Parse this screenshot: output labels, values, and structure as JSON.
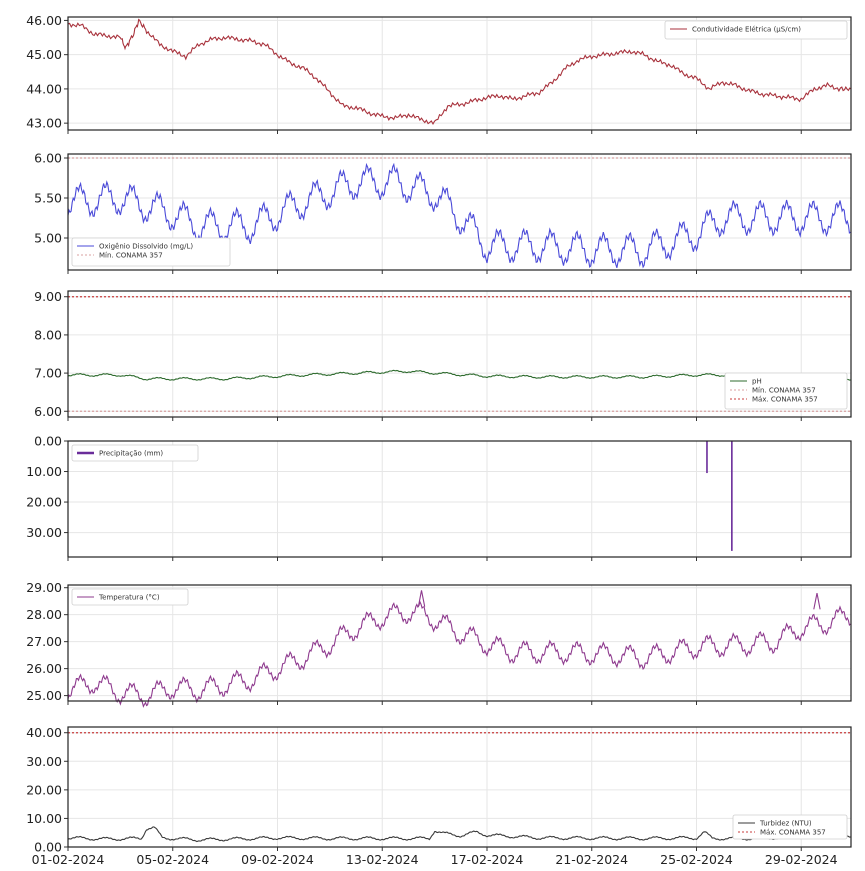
{
  "chart_data": [
    {
      "type": "line",
      "ylim": [
        42.8,
        46.1
      ],
      "yticks": [
        "43.00",
        "44.00",
        "45.00",
        "46.00"
      ],
      "series": [
        {
          "name": "Condutividade Elétrica (µS/cm)",
          "color": "#a8323c",
          "style": "solid",
          "points": [
            [
              0,
              45.9
            ],
            [
              0.5,
              45.85
            ],
            [
              1,
              45.6
            ],
            [
              1.5,
              45.55
            ],
            [
              2,
              45.5
            ],
            [
              2.2,
              45.2
            ],
            [
              2.5,
              45.6
            ],
            [
              2.7,
              46.0
            ],
            [
              3,
              45.7
            ],
            [
              3.5,
              45.3
            ],
            [
              4,
              45.1
            ],
            [
              4.5,
              44.95
            ],
            [
              5,
              45.3
            ],
            [
              5.5,
              45.45
            ],
            [
              6,
              45.5
            ],
            [
              6.5,
              45.45
            ],
            [
              7,
              45.4
            ],
            [
              7.5,
              45.3
            ],
            [
              8,
              45.0
            ],
            [
              8.5,
              44.75
            ],
            [
              9,
              44.6
            ],
            [
              9.5,
              44.3
            ],
            [
              10,
              43.9
            ],
            [
              10.5,
              43.5
            ],
            [
              11,
              43.45
            ],
            [
              11.5,
              43.3
            ],
            [
              12,
              43.2
            ],
            [
              12.5,
              43.15
            ],
            [
              13,
              43.25
            ],
            [
              13.5,
              43.1
            ],
            [
              14,
              43.0
            ],
            [
              14.5,
              43.5
            ],
            [
              15,
              43.55
            ],
            [
              15.5,
              43.65
            ],
            [
              16,
              43.75
            ],
            [
              16.5,
              43.8
            ],
            [
              17,
              43.7
            ],
            [
              17.5,
              43.8
            ],
            [
              18,
              43.9
            ],
            [
              18.5,
              44.2
            ],
            [
              19,
              44.6
            ],
            [
              19.5,
              44.85
            ],
            [
              20,
              44.95
            ],
            [
              20.5,
              45.0
            ],
            [
              21,
              45.05
            ],
            [
              21.5,
              45.1
            ],
            [
              22,
              45.0
            ],
            [
              22.5,
              44.8
            ],
            [
              23,
              44.7
            ],
            [
              23.5,
              44.45
            ],
            [
              24,
              44.3
            ],
            [
              24.5,
              44.0
            ],
            [
              25,
              44.2
            ],
            [
              25.5,
              44.1
            ],
            [
              26,
              43.95
            ],
            [
              26.5,
              43.85
            ],
            [
              27,
              43.8
            ],
            [
              27.5,
              43.75
            ],
            [
              28,
              43.7
            ],
            [
              28.5,
              44.0
            ],
            [
              29,
              44.1
            ],
            [
              29.5,
              44.0
            ],
            [
              29.9,
              44.0
            ]
          ]
        }
      ],
      "legend": {
        "position": "top-right",
        "entries": [
          "Condutividade Elétrica (µS/cm)"
        ]
      }
    },
    {
      "type": "line",
      "ylim": [
        4.6,
        6.05
      ],
      "yticks": [
        "5.00",
        "5.50",
        "6.00"
      ],
      "series": [
        {
          "name": "Oxigênio Dissolvido (mg/L)",
          "color": "#4a4ad8",
          "style": "solid",
          "mean": [
            [
              0,
              5.45
            ],
            [
              2,
              5.5
            ],
            [
              4,
              5.3
            ],
            [
              5,
              5.15
            ],
            [
              7,
              5.15
            ],
            [
              9,
              5.45
            ],
            [
              11,
              5.7
            ],
            [
              12.5,
              5.7
            ],
            [
              14,
              5.55
            ],
            [
              15,
              5.25
            ],
            [
              16,
              4.9
            ],
            [
              18,
              4.9
            ],
            [
              20,
              4.85
            ],
            [
              21,
              4.85
            ],
            [
              22,
              4.85
            ],
            [
              24,
              5.05
            ],
            [
              25,
              5.25
            ],
            [
              27,
              5.25
            ],
            [
              29.9,
              5.25
            ]
          ],
          "amp": 0.18
        },
        {
          "name": "Mín. CONAMA 357",
          "color": "#d8a0a0",
          "style": "dotted",
          "value": 6.0
        }
      ],
      "legend": {
        "position": "bottom-left",
        "entries": [
          "Oxigênio Dissolvido (mg/L)",
          "Mín. CONAMA 357"
        ]
      }
    },
    {
      "type": "line",
      "ylim": [
        5.85,
        9.15
      ],
      "yticks": [
        "6.00",
        "7.00",
        "8.00",
        "9.00"
      ],
      "series": [
        {
          "name": "pH",
          "color": "#2e6b2e",
          "style": "solid",
          "mean": [
            [
              0,
              6.95
            ],
            [
              2,
              6.95
            ],
            [
              3,
              6.85
            ],
            [
              6,
              6.85
            ],
            [
              9,
              6.95
            ],
            [
              11,
              7.0
            ],
            [
              13,
              7.05
            ],
            [
              14,
              7.0
            ],
            [
              16,
              6.92
            ],
            [
              18,
              6.9
            ],
            [
              22,
              6.9
            ],
            [
              24,
              6.95
            ],
            [
              26,
              6.95
            ],
            [
              27,
              6.9
            ],
            [
              28.5,
              6.78
            ],
            [
              29.9,
              6.85
            ]
          ],
          "amp": 0.03
        },
        {
          "name": "Mín. CONAMA 357",
          "color": "#d8a0a0",
          "style": "dotted",
          "value": 6.0
        },
        {
          "name": "Máx. CONAMA 357",
          "color": "#c83c3c",
          "style": "dotted",
          "value": 9.0
        }
      ],
      "legend": {
        "position": "right",
        "entries": [
          "pH",
          "Mín. CONAMA 357",
          "Máx. CONAMA 357"
        ]
      }
    },
    {
      "type": "bar",
      "ylim": [
        0,
        38
      ],
      "y_inverted": true,
      "yticks": [
        "0.00",
        "10.00",
        "20.00",
        "30.00"
      ],
      "series": [
        {
          "name": "Precipitação (mm)",
          "color": "#6a2c9a",
          "events": [
            [
              24.4,
              0,
              10.5
            ],
            [
              25.35,
              0,
              36
            ]
          ]
        }
      ],
      "legend": {
        "position": "top-left",
        "entries": [
          "Precipitação (mm)"
        ]
      }
    },
    {
      "type": "line",
      "ylim": [
        24.8,
        29.1
      ],
      "yticks": [
        "25.00",
        "26.00",
        "27.00",
        "28.00",
        "29.00"
      ],
      "series": [
        {
          "name": "Temperatura (°C)",
          "color": "#8e3a8e",
          "style": "solid",
          "mean": [
            [
              0,
              25.2
            ],
            [
              1,
              25.5
            ],
            [
              2,
              25.1
            ],
            [
              3,
              25.0
            ],
            [
              4,
              25.3
            ],
            [
              5,
              25.2
            ],
            [
              7,
              25.6
            ],
            [
              9,
              26.4
            ],
            [
              10,
              26.9
            ],
            [
              11,
              27.5
            ],
            [
              12,
              27.9
            ],
            [
              13,
              28.1
            ],
            [
              13.7,
              28.0
            ],
            [
              14,
              27.8
            ],
            [
              15,
              27.3
            ],
            [
              16,
              26.9
            ],
            [
              17,
              26.6
            ],
            [
              19,
              26.6
            ],
            [
              21,
              26.5
            ],
            [
              22,
              26.4
            ],
            [
              24,
              26.8
            ],
            [
              26,
              26.9
            ],
            [
              27,
              27.0
            ],
            [
              28,
              27.5
            ],
            [
              29,
              27.7
            ],
            [
              29.9,
              28.0
            ]
          ],
          "amp": 0.35
        },
        {
          "name": "",
          "color": "#8e3a8e",
          "style": "solid",
          "peaks": [
            [
              13.5,
              28.9
            ],
            [
              28.6,
              28.8
            ]
          ]
        }
      ],
      "legend": {
        "position": "top-left",
        "entries": [
          "Temperatura (°C)"
        ]
      }
    },
    {
      "type": "line",
      "ylim": [
        0,
        42
      ],
      "yticks": [
        "0.00",
        "10.00",
        "20.00",
        "30.00",
        "40.00"
      ],
      "series": [
        {
          "name": "Turbidez (NTU)",
          "color": "#3a3a3a",
          "style": "solid",
          "mean": [
            [
              0,
              3.2
            ],
            [
              1.5,
              2.8
            ],
            [
              2.8,
              3.0
            ],
            [
              3.0,
              6.5
            ],
            [
              3.3,
              6.8
            ],
            [
              3.6,
              3.2
            ],
            [
              5,
              2.5
            ],
            [
              8,
              3.2
            ],
            [
              10,
              3.0
            ],
            [
              12,
              3.0
            ],
            [
              13.8,
              3.0
            ],
            [
              14.0,
              5.8
            ],
            [
              14.3,
              4.8
            ],
            [
              15,
              4.0
            ],
            [
              15.6,
              5.2
            ],
            [
              16,
              4.2
            ],
            [
              18,
              3.2
            ],
            [
              22,
              3.0
            ],
            [
              24,
              3.2
            ],
            [
              24.3,
              5.2
            ],
            [
              24.6,
              3.0
            ],
            [
              26,
              3.0
            ],
            [
              28,
              3.6
            ],
            [
              29.9,
              4.0
            ]
          ],
          "amp": 0.5
        },
        {
          "name": "Máx. CONAMA 357",
          "color": "#c83c3c",
          "style": "dotted",
          "value": 40.0
        }
      ],
      "legend": {
        "position": "right",
        "entries": [
          "Turbidez (NTU)",
          "Máx. CONAMA 357"
        ]
      }
    }
  ],
  "x_axis": {
    "ticks": [
      {
        "day": 0,
        "label": "01-02-2024"
      },
      {
        "day": 4,
        "label": "05-02-2024"
      },
      {
        "day": 8,
        "label": "09-02-2024"
      },
      {
        "day": 12,
        "label": "13-02-2024"
      },
      {
        "day": 16,
        "label": "17-02-2024"
      },
      {
        "day": 20,
        "label": "21-02-2024"
      },
      {
        "day": 24,
        "label": "25-02-2024"
      },
      {
        "day": 28,
        "label": "29-02-2024"
      }
    ]
  }
}
